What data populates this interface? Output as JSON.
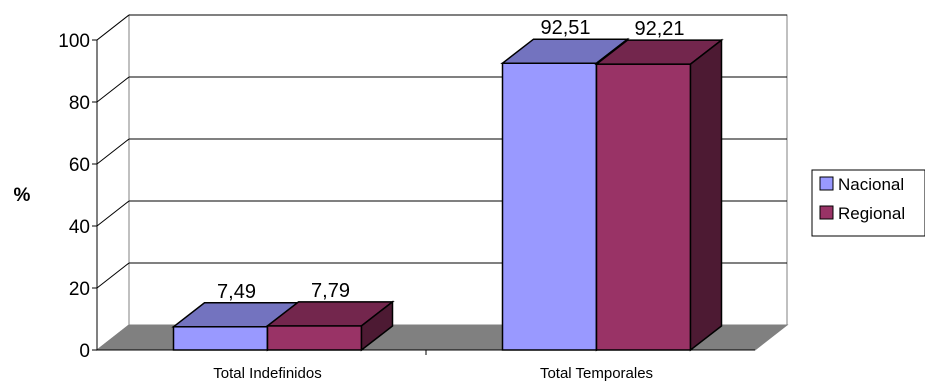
{
  "chart_data": {
    "type": "bar",
    "categories": [
      "Total Indefinidos",
      "Total Temporales"
    ],
    "series": [
      {
        "name": "Nacional",
        "values": [
          7.49,
          92.51
        ],
        "labels": [
          "7,49",
          "92,51"
        ],
        "color": "#9999ff"
      },
      {
        "name": "Regional",
        "values": [
          7.79,
          92.21
        ],
        "labels": [
          "7,79",
          "92,21"
        ],
        "color": "#993366"
      }
    ],
    "ylabel": "%",
    "ylim": [
      0,
      100
    ],
    "yticks": [
      "0",
      "20",
      "40",
      "60",
      "80",
      "100"
    ],
    "grid": true,
    "legend": "right",
    "style": "3d-clustered-column"
  }
}
